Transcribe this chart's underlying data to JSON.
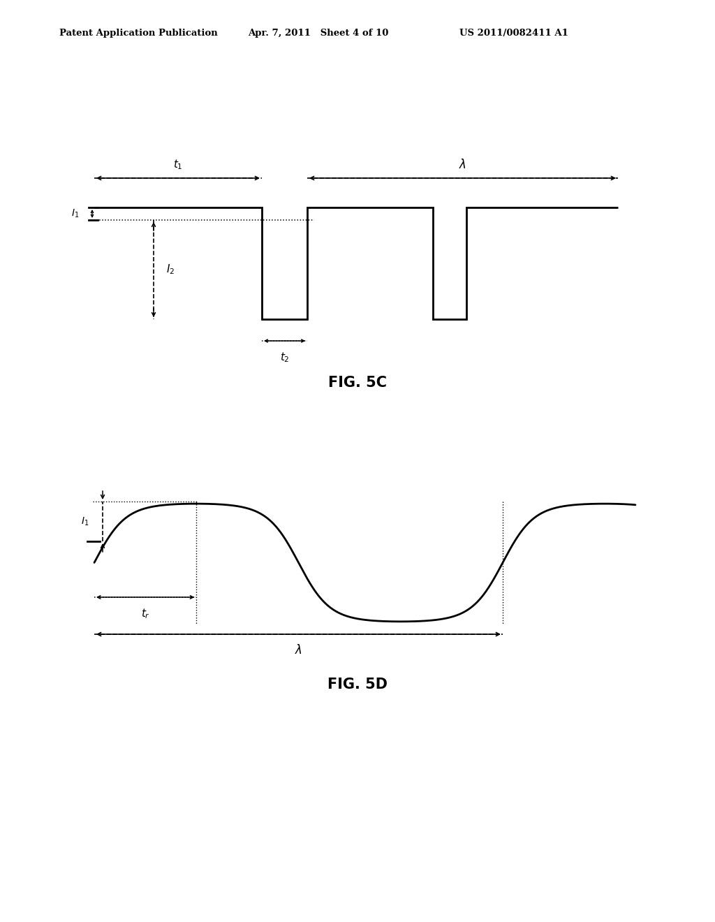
{
  "bg_color": "#ffffff",
  "text_color": "#000000",
  "header_left": "Patent Application Publication",
  "header_center": "Apr. 7, 2011   Sheet 4 of 10",
  "header_right": "US 2011/0082411 A1",
  "fig5c_label": "FIG. 5C",
  "fig5d_label": "FIG. 5D",
  "line_color": "#000000",
  "line_width": 2.0
}
